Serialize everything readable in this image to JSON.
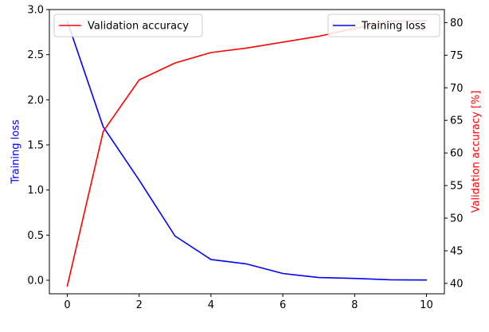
{
  "chart_data": {
    "type": "line",
    "x": [
      0,
      1,
      2,
      3,
      4,
      5,
      6,
      7,
      8,
      9,
      10
    ],
    "xlim": [
      -0.5,
      10.5
    ],
    "xticks": [
      0,
      2,
      4,
      6,
      8,
      10
    ],
    "xlabel": "",
    "title": "",
    "grid": false,
    "axes": {
      "left": {
        "label": "Training loss",
        "color": "#0000ff",
        "ylim": [
          -0.15,
          3.0
        ],
        "ticks": [
          0.0,
          0.5,
          1.0,
          1.5,
          2.0,
          2.5,
          3.0
        ],
        "tick_labels": [
          "0.0",
          "0.5",
          "1.0",
          "1.5",
          "2.0",
          "2.5",
          "3.0"
        ]
      },
      "right": {
        "label": "Validation accuracy [%]",
        "color": "#ff0000",
        "ylim": [
          38.4,
          82
        ],
        "ticks": [
          40,
          45,
          50,
          55,
          60,
          65,
          70,
          75,
          80
        ],
        "tick_labels": [
          "40",
          "45",
          "50",
          "55",
          "60",
          "65",
          "70",
          "75",
          "80"
        ]
      }
    },
    "series": [
      {
        "name": "Training loss",
        "axis": "left",
        "color": "#0000ff",
        "values": [
          2.87,
          1.7,
          1.11,
          0.49,
          0.23,
          0.18,
          0.075,
          0.03,
          0.02,
          0.005,
          0.003
        ]
      },
      {
        "name": "Validation accuracy",
        "axis": "right",
        "color": "#ff0000",
        "values": [
          39.6,
          63.3,
          71.2,
          73.8,
          75.4,
          76.1,
          77.0,
          77.9,
          79.1,
          80.2,
          80.3
        ]
      }
    ],
    "legends": [
      {
        "series": "Validation accuracy",
        "placement": "upper-left"
      },
      {
        "series": "Training loss",
        "placement": "upper-right"
      }
    ]
  }
}
